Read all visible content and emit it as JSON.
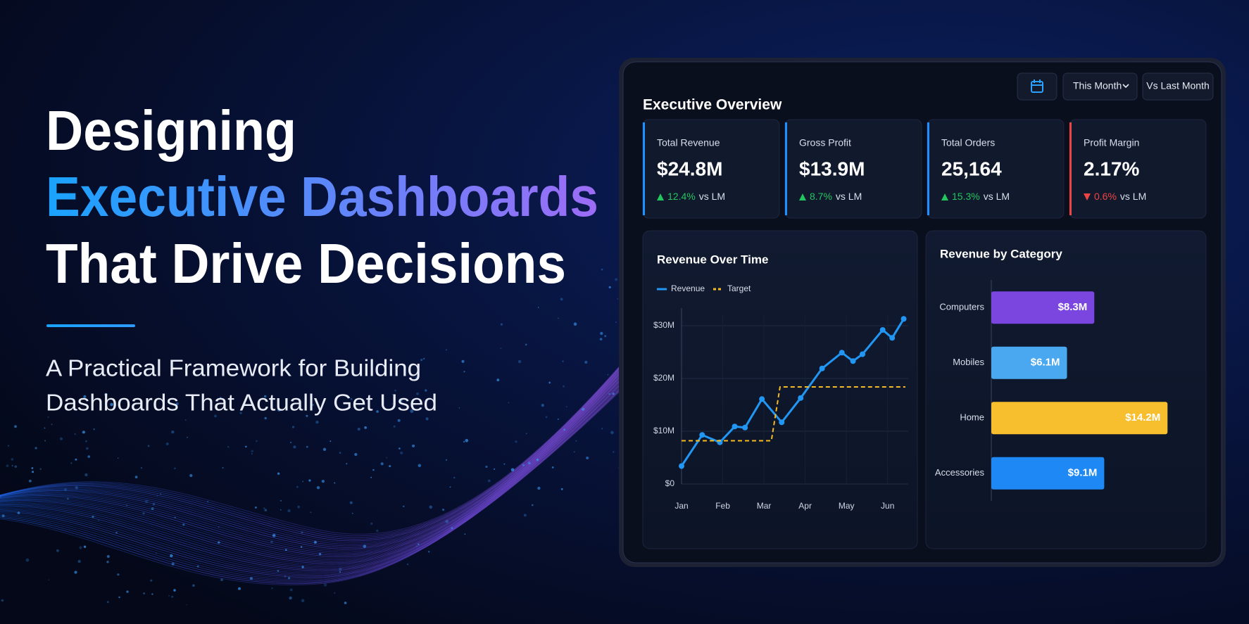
{
  "hero": {
    "title": [
      "Designing",
      "Executive Dashboards",
      "That Drive Decisions"
    ],
    "subtitle": [
      "A Practical Framework for Building",
      "Dashboards That Actually Get Used"
    ]
  },
  "dashboard": {
    "title": "Executive Overview",
    "controls": [
      "This Month",
      "Vs Last Month"
    ],
    "kpis": [
      {
        "label": "Total Revenue",
        "value": "$24.8M",
        "change": "12.4%",
        "trend": "up",
        "comparison": "vs LM",
        "accent": "#1e90ff"
      },
      {
        "label": "Gross Profit",
        "value": "$13.9M",
        "change": "8.7%",
        "trend": "up",
        "comparison": "vs LM",
        "accent": "#1e90ff"
      },
      {
        "label": "Total Orders",
        "value": "25,164",
        "change": "15.3%",
        "trend": "up",
        "comparison": "vs LM",
        "accent": "#1e90ff"
      },
      {
        "label": "Profit Margin",
        "value": "2.17%",
        "change": "0.6%",
        "trend": "down",
        "comparison": "vs LM",
        "accent": "#ef4444"
      }
    ]
  },
  "chart_data": [
    {
      "type": "line",
      "title": "Revenue Over Time",
      "series": [
        {
          "name": "Revenue",
          "color": "#2196f3",
          "line_style": "solid",
          "markers": true,
          "x": [
            0,
            0.5,
            0.93,
            1.29,
            1.54,
            1.95,
            2.43,
            2.89,
            3.41,
            3.89,
            4.16,
            4.39,
            4.88,
            5.11,
            5.39
          ],
          "values": [
            3.4,
            9.3,
            7.9,
            10.9,
            10.7,
            16.1,
            11.7,
            16.3,
            21.9,
            24.9,
            23.3,
            24.6,
            29.2,
            27.7,
            31.3
          ]
        },
        {
          "name": "Target",
          "color": "#f5b921",
          "line_style": "dashed",
          "markers": false,
          "x": [
            0,
            2.18,
            2.39,
            5.43
          ],
          "values": [
            8.2,
            8.2,
            18.4,
            18.4
          ]
        }
      ],
      "xlim": [
        0,
        5.5
      ],
      "xticks": [
        {
          "value": 0,
          "label": "Jan"
        },
        {
          "value": 1,
          "label": "Feb"
        },
        {
          "value": 2,
          "label": "Mar"
        },
        {
          "value": 3,
          "label": "Apr"
        },
        {
          "value": 4,
          "label": "May"
        },
        {
          "value": 5,
          "label": "Jun"
        }
      ],
      "ylim": [
        0,
        32
      ],
      "yticks": [
        {
          "value": 0,
          "label": "$0"
        },
        {
          "value": 10,
          "label": "$10M"
        },
        {
          "value": 20,
          "label": "$20M"
        },
        {
          "value": 30,
          "label": "$30M"
        }
      ],
      "grid": true
    },
    {
      "type": "bar",
      "orientation": "horizontal",
      "title": "Revenue by Category",
      "categories": [
        "Computers",
        "Mobiles",
        "Home",
        "Accessories"
      ],
      "values": [
        8.3,
        6.1,
        14.2,
        9.1
      ],
      "value_labels": [
        "$8.3M",
        "$6.1M",
        "$14.2M",
        "$9.1M"
      ],
      "colors": [
        "#7b45e0",
        "#4aa8f0",
        "#f7bf2e",
        "#1e88f5"
      ],
      "xlim": [
        0,
        16
      ]
    }
  ]
}
